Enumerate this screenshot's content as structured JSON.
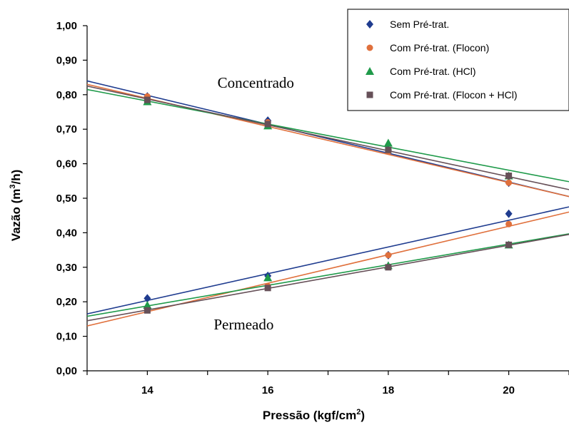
{
  "chart_data": {
    "type": "scatter",
    "xlabel": "Pressão (kgf/cm²)",
    "xlabel_main": "Pressão (kgf/cm",
    "xlabel_sup": "2",
    "xlabel_end": ")",
    "ylabel_main": "Vazão (m",
    "ylabel_sup": "3",
    "ylabel_end": "/h)",
    "xlim": [
      13,
      21
    ],
    "ylim": [
      0,
      1
    ],
    "x_ticks": [
      14,
      16,
      18,
      20
    ],
    "x_tick_labels": [
      "14",
      "16",
      "18",
      "20"
    ],
    "y_ticks": [
      0,
      0.1,
      0.2,
      0.3,
      0.4,
      0.5,
      0.6,
      0.7,
      0.8,
      0.9,
      1.0
    ],
    "y_tick_labels": [
      "0,00",
      "0,10",
      "0,20",
      "0,30",
      "0,40",
      "0,50",
      "0,60",
      "0,70",
      "0,80",
      "0,90",
      "1,00"
    ],
    "grid": false,
    "legend_position": "top-right",
    "annotations": [
      {
        "text": "Concentrado",
        "x": 15.8,
        "y": 0.82
      },
      {
        "text": "Permeado",
        "x": 15.6,
        "y": 0.12
      }
    ],
    "x": [
      14,
      16,
      18,
      20
    ],
    "series": [
      {
        "name": "Sem Pré-trat.",
        "color": "#1f3c8f",
        "marker": "diamond",
        "concentrado": [
          0.795,
          0.725,
          0.64,
          0.545
        ],
        "permeado": [
          0.21,
          0.275,
          0.335,
          0.455
        ],
        "fit_concentrado": [
          0.84,
          0.505
        ],
        "fit_permeado": [
          0.165,
          0.475
        ]
      },
      {
        "name": "Com Pré-trat. (Flocon)",
        "color": "#e0703c",
        "marker": "circle",
        "concentrado": [
          0.795,
          0.72,
          0.635,
          0.545
        ],
        "permeado": [
          0.18,
          0.245,
          0.335,
          0.425
        ],
        "fit_concentrado": [
          0.83,
          0.505
        ],
        "fit_permeado": [
          0.13,
          0.46
        ]
      },
      {
        "name": "Com Pré-trat. (HCl)",
        "color": "#1f9a4a",
        "marker": "triangle",
        "concentrado": [
          0.78,
          0.71,
          0.66,
          0.565
        ],
        "permeado": [
          0.19,
          0.27,
          0.305,
          0.365
        ],
        "fit_concentrado": [
          0.815,
          0.548
        ],
        "fit_permeado": [
          0.158,
          0.397
        ]
      },
      {
        "name": "Com Pré-trat. (Flocon + HCl)",
        "color": "#665058",
        "marker": "square",
        "concentrado": [
          0.785,
          0.715,
          0.64,
          0.565
        ],
        "permeado": [
          0.175,
          0.24,
          0.3,
          0.365
        ],
        "fit_concentrado": [
          0.825,
          0.525
        ],
        "fit_permeado": [
          0.145,
          0.395
        ]
      }
    ]
  }
}
